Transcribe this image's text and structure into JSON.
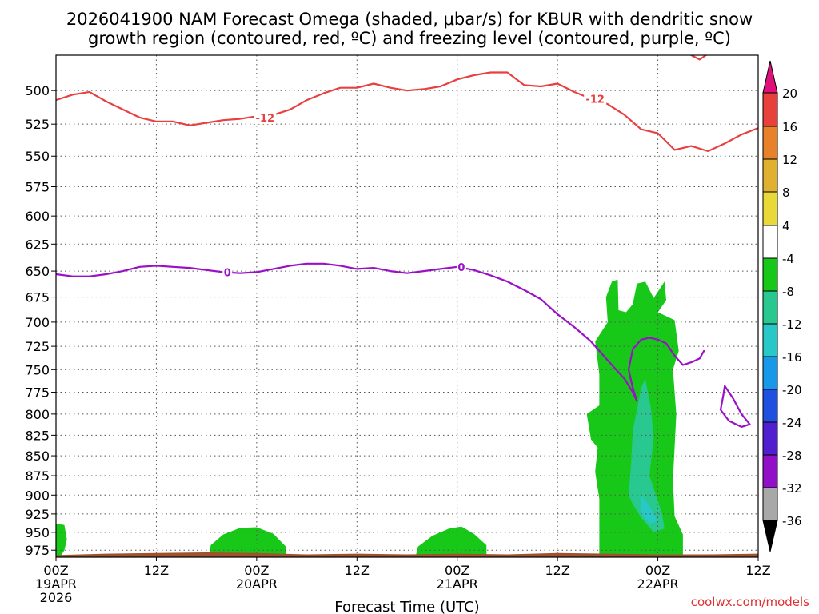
{
  "chart_data": {
    "type": "time-height",
    "title_line1": "2026041900 NAM Forecast Omega (shaded, μbar/s) for KBUR with dendritic snow",
    "title_line2": "growth region (contoured, red, ºC) and freezing level (contoured, purple, ºC)",
    "xlabel": "Forecast Time (UTC)",
    "credit": "coolwx.com/models",
    "x_range_hours": [
      0,
      84
    ],
    "y_range_mb": [
      475,
      985
    ],
    "y_ticks": [
      500,
      525,
      550,
      575,
      600,
      625,
      650,
      675,
      700,
      725,
      750,
      775,
      800,
      825,
      850,
      875,
      900,
      925,
      950,
      975
    ],
    "x_ticks": [
      {
        "hour": 0,
        "line1": "00Z",
        "line2": "19APR",
        "line3": "2026"
      },
      {
        "hour": 12,
        "line1": "12Z",
        "line2": "",
        "line3": ""
      },
      {
        "hour": 24,
        "line1": "00Z",
        "line2": "20APR",
        "line3": ""
      },
      {
        "hour": 36,
        "line1": "12Z",
        "line2": "",
        "line3": ""
      },
      {
        "hour": 48,
        "line1": "00Z",
        "line2": "21APR",
        "line3": ""
      },
      {
        "hour": 60,
        "line1": "12Z",
        "line2": "",
        "line3": ""
      },
      {
        "hour": 72,
        "line1": "00Z",
        "line2": "22APR",
        "line3": ""
      },
      {
        "hour": 84,
        "line1": "12Z",
        "line2": "",
        "line3": ""
      }
    ],
    "colorbar": {
      "labels": [
        "20",
        "16",
        "12",
        "8",
        "4",
        "-4",
        "-8",
        "-12",
        "-16",
        "-20",
        "-24",
        "-28",
        "-32",
        "-36"
      ],
      "colors": {
        "top_triangle": "#e0107a",
        "above_16": "#e8403a",
        "c12_16": "#e8822a",
        "c8_12": "#e0b030",
        "c4_8": "#e8d838",
        "neutral": "#ffffff",
        "m4_m8": "#18c818",
        "m8_m12": "#28c890",
        "m12_m16": "#28c8c8",
        "m16_m20": "#1898e8",
        "m20_m24": "#2050e0",
        "m24_m28": "#5020d0",
        "m28_m32": "#9010c8",
        "m32_m36": "#a8a8a8",
        "bottom_triangle": "#000000"
      }
    },
    "contour_labels": {
      "dgz": "-12",
      "freezing": "0"
    },
    "series": [
      {
        "name": "dendritic growth region (-12 C)",
        "color": "#e84040",
        "points": [
          [
            0,
            507
          ],
          [
            2,
            503
          ],
          [
            4,
            501
          ],
          [
            6,
            508
          ],
          [
            8,
            514
          ],
          [
            10,
            520
          ],
          [
            12,
            523
          ],
          [
            14,
            523
          ],
          [
            16,
            526
          ],
          [
            18,
            524
          ],
          [
            20,
            522
          ],
          [
            22,
            521
          ],
          [
            24,
            519
          ],
          [
            26,
            518
          ],
          [
            28,
            514
          ],
          [
            30,
            507
          ],
          [
            32,
            502
          ],
          [
            34,
            498
          ],
          [
            36,
            498
          ],
          [
            38,
            495
          ],
          [
            40,
            498
          ],
          [
            42,
            500
          ],
          [
            44,
            499
          ],
          [
            46,
            497
          ],
          [
            48,
            492
          ],
          [
            50,
            489
          ],
          [
            52,
            487
          ],
          [
            54,
            487
          ],
          [
            56,
            496
          ],
          [
            58,
            497
          ],
          [
            60,
            495
          ],
          [
            62,
            501
          ],
          [
            64,
            506
          ],
          [
            66,
            510
          ],
          [
            68,
            518
          ],
          [
            70,
            529
          ],
          [
            72,
            532
          ],
          [
            74,
            545
          ],
          [
            76,
            542
          ],
          [
            78,
            546
          ],
          [
            80,
            540
          ],
          [
            82,
            533
          ],
          [
            84,
            528
          ]
        ]
      },
      {
        "name": "dendritic growth region upper fragment",
        "color": "#e84040",
        "points": [
          [
            76,
            475
          ],
          [
            77,
            478
          ],
          [
            78,
            474
          ]
        ]
      },
      {
        "name": "freezing level (0 C)",
        "color": "#9a10c8",
        "points": [
          [
            0,
            653
          ],
          [
            2,
            655
          ],
          [
            4,
            655
          ],
          [
            6,
            653
          ],
          [
            8,
            650
          ],
          [
            10,
            646
          ],
          [
            12,
            645
          ],
          [
            14,
            646
          ],
          [
            16,
            647
          ],
          [
            18,
            649
          ],
          [
            20,
            651
          ],
          [
            22,
            652
          ],
          [
            24,
            651
          ],
          [
            26,
            648
          ],
          [
            28,
            645
          ],
          [
            30,
            643
          ],
          [
            32,
            643
          ],
          [
            34,
            645
          ],
          [
            36,
            648
          ],
          [
            38,
            647
          ],
          [
            40,
            650
          ],
          [
            42,
            652
          ],
          [
            44,
            650
          ],
          [
            46,
            648
          ],
          [
            48,
            646
          ],
          [
            50,
            649
          ],
          [
            52,
            654
          ],
          [
            54,
            660
          ],
          [
            56,
            668
          ],
          [
            58,
            677
          ],
          [
            60,
            692
          ],
          [
            62,
            705
          ],
          [
            64,
            720
          ],
          [
            66,
            740
          ],
          [
            68,
            760
          ],
          [
            69,
            775
          ],
          [
            69.5,
            785
          ],
          [
            69,
            770
          ],
          [
            68.5,
            750
          ],
          [
            69,
            728
          ],
          [
            70,
            718
          ],
          [
            71,
            716
          ],
          [
            72,
            718
          ],
          [
            73,
            722
          ],
          [
            74,
            735
          ],
          [
            75,
            745
          ],
          [
            76,
            742
          ],
          [
            77,
            738
          ],
          [
            77.5,
            730
          ]
        ]
      },
      {
        "name": "freezing level isolated loop",
        "color": "#9a10c8",
        "closed": true,
        "points": [
          [
            80,
            768
          ],
          [
            81,
            782
          ],
          [
            82,
            800
          ],
          [
            83,
            812
          ],
          [
            82,
            815
          ],
          [
            80.5,
            808
          ],
          [
            79.5,
            795
          ],
          [
            79.8,
            780
          ]
        ]
      }
    ],
    "shaded_regions": [
      {
        "name": "omega -4 to -8 near surface 00Z19",
        "color": "#18c818",
        "points": [
          [
            0,
            985
          ],
          [
            0,
            938
          ],
          [
            1,
            940
          ],
          [
            1.3,
            960
          ],
          [
            1,
            975
          ],
          [
            0.5,
            985
          ]
        ]
      },
      {
        "name": "omega -4 to -8 near surface 20APR",
        "color": "#18c818",
        "points": [
          [
            18.3,
            985
          ],
          [
            18.5,
            968
          ],
          [
            20,
            953
          ],
          [
            22,
            944
          ],
          [
            24,
            943
          ],
          [
            26,
            952
          ],
          [
            27.5,
            970
          ],
          [
            27.5,
            985
          ]
        ]
      },
      {
        "name": "omega -4 to -8 near surface 21APR",
        "color": "#18c818",
        "points": [
          [
            43,
            985
          ],
          [
            43.3,
            970
          ],
          [
            45,
            955
          ],
          [
            47,
            945
          ],
          [
            48.5,
            942
          ],
          [
            50,
            952
          ],
          [
            51.5,
            968
          ],
          [
            51.5,
            985
          ]
        ]
      },
      {
        "name": "omega -4 to -8 main ascent 22APR",
        "color": "#18c818",
        "points": [
          [
            65,
            985
          ],
          [
            65,
            905
          ],
          [
            64.5,
            870
          ],
          [
            64.8,
            840
          ],
          [
            64,
            830
          ],
          [
            63.5,
            800
          ],
          [
            65,
            790
          ],
          [
            65,
            755
          ],
          [
            64.5,
            720
          ],
          [
            66,
            700
          ],
          [
            65.8,
            675
          ],
          [
            66.5,
            660
          ],
          [
            67.2,
            658
          ],
          [
            67.3,
            688
          ],
          [
            68.2,
            690
          ],
          [
            69,
            682
          ],
          [
            69.5,
            662
          ],
          [
            70.5,
            660
          ],
          [
            71.5,
            676
          ],
          [
            72.8,
            660
          ],
          [
            73,
            678
          ],
          [
            72,
            690
          ],
          [
            74,
            698
          ],
          [
            74.5,
            730
          ],
          [
            73.8,
            750
          ],
          [
            74.2,
            800
          ],
          [
            74,
            840
          ],
          [
            73.8,
            880
          ],
          [
            74,
            928
          ],
          [
            75,
            953
          ],
          [
            75,
            985
          ]
        ]
      },
      {
        "name": "omega -8 to -12",
        "color": "#28c890",
        "points": [
          [
            68.5,
            900
          ],
          [
            68.8,
            860
          ],
          [
            69,
            820
          ],
          [
            69.5,
            795
          ],
          [
            70,
            770
          ],
          [
            70.5,
            760
          ],
          [
            71.2,
            795
          ],
          [
            71.5,
            830
          ],
          [
            71.2,
            855
          ],
          [
            71,
            875
          ],
          [
            72.5,
            925
          ],
          [
            72.8,
            945
          ],
          [
            71.5,
            950
          ],
          [
            70,
            930
          ],
          [
            69,
            912
          ]
        ]
      },
      {
        "name": "omega -12 to -16",
        "color": "#28c8c8",
        "points": [
          [
            70,
            900
          ],
          [
            71,
            915
          ],
          [
            72,
            935
          ],
          [
            71,
            938
          ],
          [
            70,
            925
          ]
        ]
      }
    ],
    "terrain": {
      "color": "#a0522d",
      "surface_points": [
        [
          0,
          982
        ],
        [
          6,
          980
        ],
        [
          12,
          979
        ],
        [
          18,
          978
        ],
        [
          24,
          979
        ],
        [
          30,
          981
        ],
        [
          36,
          980
        ],
        [
          42,
          981
        ],
        [
          48,
          980
        ],
        [
          54,
          981
        ],
        [
          60,
          979
        ],
        [
          66,
          980
        ],
        [
          72,
          981
        ],
        [
          78,
          981
        ],
        [
          84,
          980
        ]
      ]
    }
  }
}
